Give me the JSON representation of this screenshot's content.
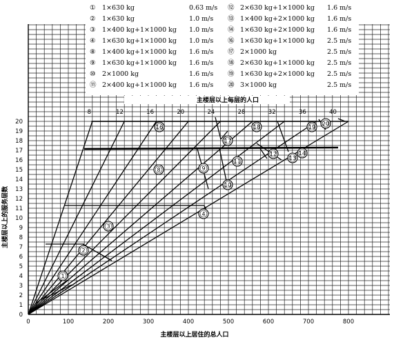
{
  "legend": {
    "col1": [
      {
        "num": "①",
        "spec": "1×630 kg",
        "speed": "0.63 m/s"
      },
      {
        "num": "②",
        "spec": "1×630 kg",
        "speed": "1.0 m/s"
      },
      {
        "num": "③",
        "spec": "1×400 kg+1×1000 kg",
        "speed": "1.0 m/s"
      },
      {
        "num": "④",
        "spec": "1×630 kg+1×1000 kg",
        "speed": "1.0 m/s"
      },
      {
        "num": "⑧",
        "spec": "1×400 kg+1×1000 kg",
        "speed": "1.6 m/s"
      },
      {
        "num": "⑨",
        "spec": "1×630 kg+1×1000 kg",
        "speed": "1.6 m/s"
      },
      {
        "num": "⑩",
        "spec": "2×1000 kg",
        "speed": "1.6 m/s"
      },
      {
        "num": "⑪",
        "spec": "2×400 kg+1×1000 kg",
        "speed": "1.6 m/s"
      }
    ],
    "col2": [
      {
        "num": "⑫",
        "spec": "2×630 kg+1×1000 kg",
        "speed": "1.6 m/s"
      },
      {
        "num": "⑬",
        "spec": "1×400 kg+2×1000 kg",
        "speed": "1.6 m/s"
      },
      {
        "num": "⑭",
        "spec": "1×630 kg+2×1000 kg",
        "speed": "1.6 m/s"
      },
      {
        "num": "⑯",
        "spec": "1×630 kg+1×1000 kg",
        "speed": "2.5 m/s"
      },
      {
        "num": "⑰",
        "spec": "2×1000 kg",
        "speed": "2.5 m/s"
      },
      {
        "num": "⑱",
        "spec": "2×630 kg+1×1000 kg",
        "speed": "2.5 m/s"
      },
      {
        "num": "⑲",
        "spec": "1×630 kg+2×1000 kg",
        "speed": "2.5 m/s"
      },
      {
        "num": "⑳",
        "spec": "3×1000 kg",
        "speed": "2.5 m/s"
      }
    ]
  },
  "axes": {
    "x_label": "主楼层以上居住的总人口",
    "y_label": "主楼层以上的服务层数",
    "top_label": "主楼层以上每层的人口",
    "x_ticks": [
      "0",
      "100",
      "200",
      "300",
      "400",
      "500",
      "600",
      "700",
      "800"
    ],
    "y_ticks": [
      "1",
      "2",
      "3",
      "4",
      "5",
      "6",
      "7",
      "8",
      "9",
      "10",
      "11",
      "12",
      "13",
      "14",
      "15",
      "16",
      "17",
      "18",
      "19",
      "20"
    ],
    "y_origin": "0",
    "top_ticks": [
      "8",
      "12",
      "16",
      "20",
      "24",
      "28",
      "32",
      "36",
      "40"
    ]
  },
  "curves": [
    {
      "id": "1",
      "label": "1"
    },
    {
      "id": "2",
      "label": "2"
    },
    {
      "id": "3",
      "label": "3"
    },
    {
      "id": "4",
      "label": "4"
    },
    {
      "id": "8",
      "label": "8"
    },
    {
      "id": "9",
      "label": "9"
    },
    {
      "id": "10",
      "label": "10"
    },
    {
      "id": "11",
      "label": "11"
    },
    {
      "id": "12",
      "label": "12"
    },
    {
      "id": "13",
      "label": "13"
    },
    {
      "id": "14",
      "label": "14"
    },
    {
      "id": "16",
      "label": "16"
    },
    {
      "id": "17",
      "label": "17"
    },
    {
      "id": "18",
      "label": "18"
    },
    {
      "id": "19",
      "label": "19"
    },
    {
      "id": "20",
      "label": "20"
    }
  ]
}
